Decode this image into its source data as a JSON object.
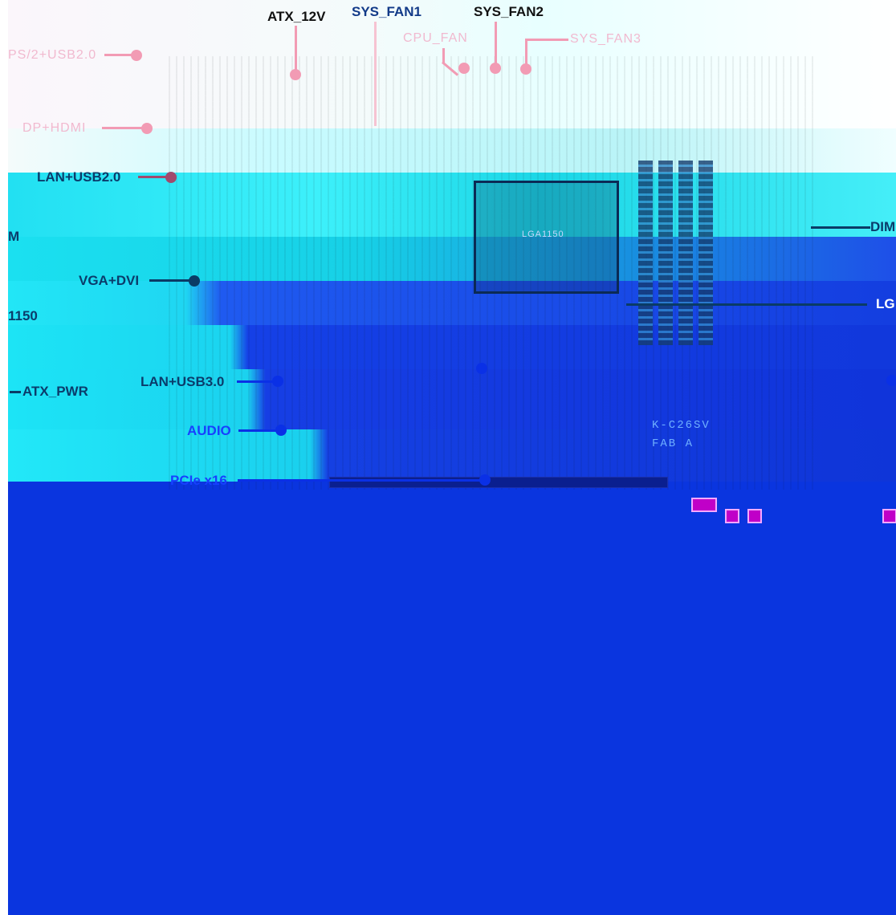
{
  "diagram": {
    "board_marking": [
      "K-C26SV",
      "FAB A"
    ],
    "socket_marking": "LGA1150",
    "labels": {
      "atx_12v": "ATX_12V",
      "sys_fan1": "SYS_FAN1",
      "sys_fan2": "SYS_FAN2",
      "cpu_fan": "CPU_FAN",
      "sys_fan3": "SYS_FAN3",
      "ps2_usb20": "PS/2+USB2.0",
      "dp_hdmi": "DP+HDMI",
      "lan_usb20": "LAN+USB2.0",
      "dimm_left": "M",
      "dimm_right": "DIM",
      "vga_dvi": "VGA+DVI",
      "lga1150_left": "1150",
      "lga_right": "LG",
      "lan_usb30": "LAN+USB3.0",
      "atx_pwr": "ATX_PWR",
      "audio": "AUDIO",
      "pcie_x16": "PCIe x16"
    },
    "colors": {
      "top_labels": "#111111",
      "top_connectors": "#f29bb4",
      "mid_labels": "#0b3c6b",
      "lower_labels": "#1740ff",
      "background_blue": "#0a35df",
      "background_cyan": "#22e0f2"
    }
  }
}
